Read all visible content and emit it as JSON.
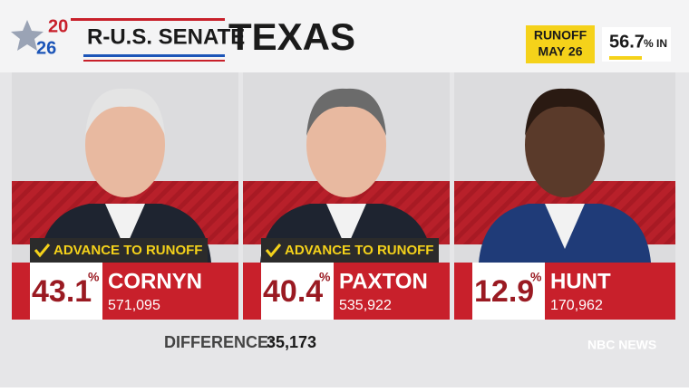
{
  "header": {
    "year_top": "20",
    "year_bottom": "26",
    "race": "R-U.S. SENATE",
    "state": "TEXAS",
    "runoff": "RUNOFF",
    "runoff_date": "MAY 26",
    "reporting": "56.7",
    "reporting_unit": "% IN"
  },
  "candidates": [
    {
      "name": "CORNYN",
      "percent": "43.1",
      "percent_sign": "%",
      "votes": "571,095",
      "status": "ADVANCE TO RUNOFF"
    },
    {
      "name": "PAXTON",
      "percent": "40.4",
      "percent_sign": "%",
      "votes": "535,922",
      "status": "ADVANCE TO RUNOFF"
    },
    {
      "name": "HUNT",
      "percent": "12.9",
      "percent_sign": "%",
      "votes": "170,962"
    }
  ],
  "footer": {
    "difference_label": "DIFFERENCE:",
    "difference": "35,173",
    "network": "NBC NEWS"
  }
}
